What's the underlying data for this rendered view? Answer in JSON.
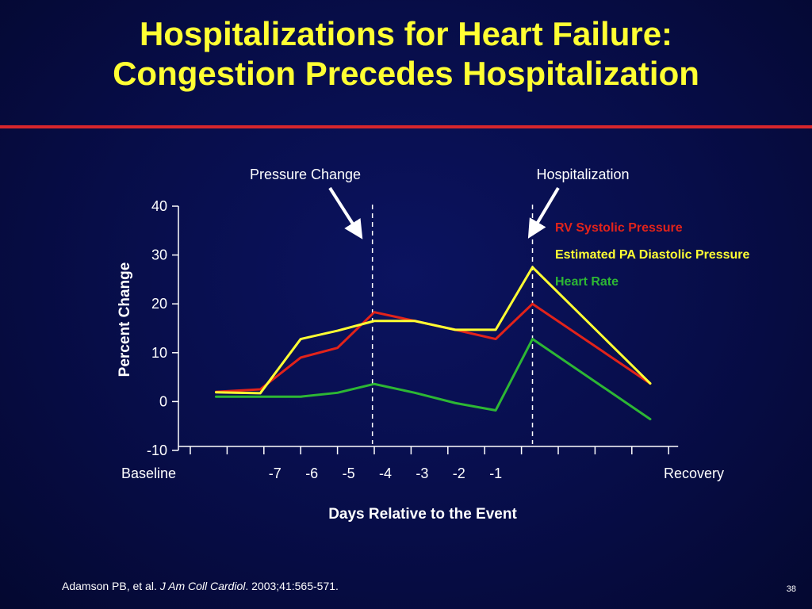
{
  "slide": {
    "title_line1": "Hospitalizations for Heart Failure:",
    "title_line2": "Congestion Precedes Hospitalization",
    "citation_authors": "Adamson PB, et al. ",
    "citation_journal": "J Am Coll Cardiol",
    "citation_rest": ". 2003;41:565-571.",
    "slide_number": "38"
  },
  "colors": {
    "title": "#ffff33",
    "rule": "#d7262c",
    "rv_systolic": "#e2231a",
    "pa_diastolic": "#ffff33",
    "heart_rate": "#2db734",
    "axis": "#ffffff"
  },
  "chart_data": {
    "type": "line",
    "title": "",
    "xlabel": "Days Relative to the Event",
    "ylabel": "Percent Change",
    "ylim": [
      -10,
      40
    ],
    "yticks": [
      -10,
      0,
      10,
      20,
      30,
      40
    ],
    "x_tick_labels": [
      "Baseline",
      "-7",
      "-6",
      "-5",
      "-4",
      "-3",
      "-2",
      "-1",
      "Recovery"
    ],
    "x_tick_positions": [
      0,
      2,
      3,
      4,
      5,
      6,
      7,
      8,
      13
    ],
    "x_tick_count": 14,
    "x": [
      0,
      1,
      2,
      3,
      4,
      5,
      6,
      7,
      8,
      9,
      10,
      11,
      12,
      13
    ],
    "series": [
      {
        "name": "RV Systolic Pressure",
        "color_key": "rv_systolic",
        "x": [
          0.7,
          1.9,
          3.0,
          4.0,
          5.0,
          6.1,
          7.2,
          8.3,
          9.3,
          12.5
        ],
        "values": [
          2.0,
          2.5,
          9.0,
          11.0,
          18.3,
          16.5,
          14.7,
          12.8,
          20.0,
          3.7
        ]
      },
      {
        "name": "Estimated PA Diastolic Pressure",
        "color_key": "pa_diastolic",
        "x": [
          0.7,
          1.9,
          3.0,
          4.0,
          5.0,
          6.1,
          7.2,
          8.3,
          9.3,
          12.5
        ],
        "values": [
          1.9,
          1.7,
          12.8,
          14.5,
          16.5,
          16.5,
          14.7,
          14.7,
          27.5,
          3.7
        ]
      },
      {
        "name": "Heart Rate",
        "color_key": "heart_rate",
        "x": [
          0.7,
          1.9,
          3.0,
          4.0,
          5.0,
          6.1,
          7.2,
          8.3,
          9.3,
          12.5
        ],
        "values": [
          1.0,
          1.0,
          1.0,
          1.8,
          3.6,
          1.8,
          -0.3,
          -1.8,
          12.8,
          -3.6
        ]
      }
    ],
    "event_lines": [
      {
        "label": "Pressure Change",
        "x": 4.95
      },
      {
        "label": "Hospitalization",
        "x": 9.3
      }
    ],
    "legend": "top-right"
  }
}
